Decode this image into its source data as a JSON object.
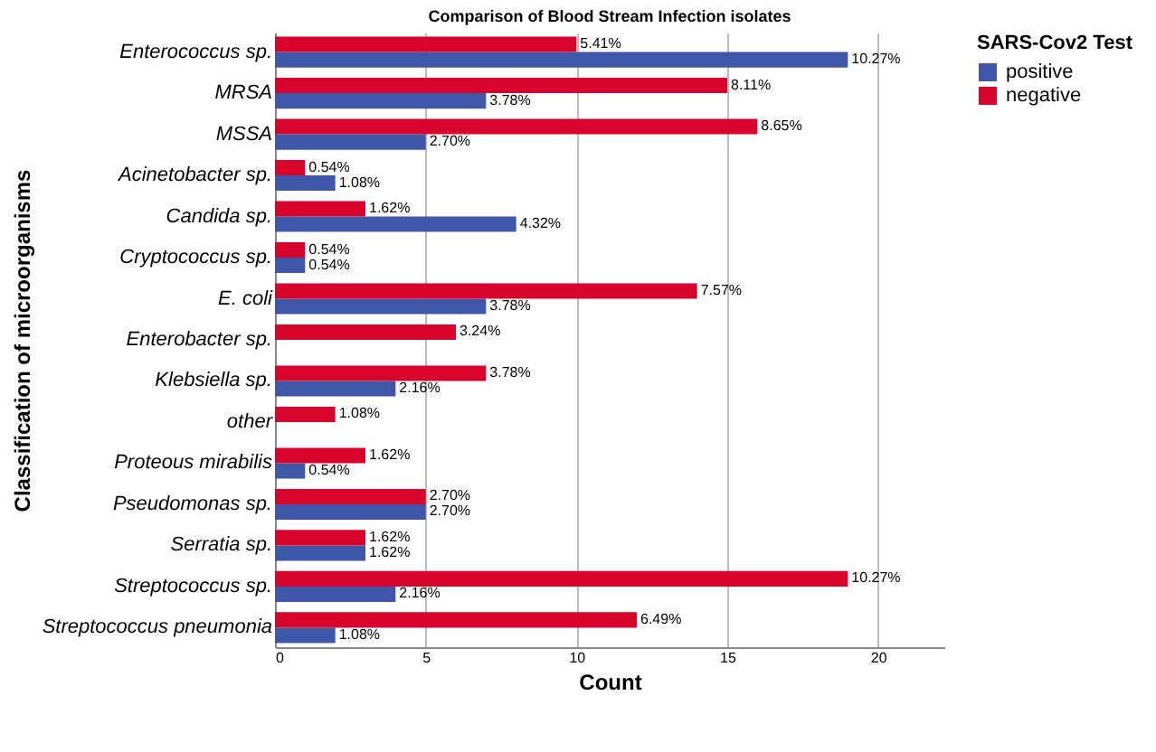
{
  "chart_data": {
    "type": "bar",
    "orientation": "horizontal",
    "title": "Comparison of Blood Stream Infection isolates",
    "xlabel": "Count",
    "ylabel": "Classification of microorganisms",
    "legend_title": "SARS-Cov2 Test",
    "legend": "right",
    "grid": "x",
    "categories": [
      "Enterococcus sp.",
      "MRSA",
      "MSSA",
      "Acinetobacter sp.",
      "Candida sp.",
      "Cryptococcus sp.",
      "E. coli",
      "Enterobacter sp.",
      "Klebsiella sp.",
      "other",
      "Proteous mirabilis",
      "Pseudomonas sp.",
      "Serratia sp.",
      "Streptococcus sp.",
      "Streptococcus pneumonia"
    ],
    "xlim": [
      0,
      22.2
    ],
    "xticks": [
      0,
      5,
      10,
      15,
      20
    ],
    "series": [
      {
        "name": "positive",
        "color": "#3f57a8",
        "values": [
          19,
          7,
          5,
          2,
          8,
          1,
          7,
          null,
          4,
          null,
          1,
          5,
          3,
          4,
          2
        ]
      },
      {
        "name": "negative",
        "color": "#d9042b",
        "values": [
          10,
          15,
          16,
          1,
          3,
          1,
          14,
          6,
          7,
          2,
          3,
          5,
          3,
          19,
          12
        ]
      }
    ],
    "annotations": [
      {
        "text": "5.41%",
        "x": 10,
        "y": "Enterococcus sp."
      },
      {
        "text": "10.27%",
        "x": 19,
        "y": "Enterococcus sp."
      },
      {
        "text": "8.11%",
        "x": 15,
        "y": "MRSA"
      },
      {
        "text": "3.78%",
        "x": 7,
        "y": "MRSA"
      },
      {
        "text": "8.65%",
        "x": 16,
        "y": "MSSA"
      },
      {
        "text": "2.70%",
        "x": 5,
        "y": "MSSA"
      },
      {
        "text": "0.54%",
        "x": 1,
        "y": "Acinetobacter sp."
      },
      {
        "text": "1.08%",
        "x": 2,
        "y": "Acinetobacter sp."
      },
      {
        "text": "1.62%",
        "x": 3,
        "y": "Candida sp."
      },
      {
        "text": "4.32%",
        "x": 8,
        "y": "Candida sp."
      },
      {
        "text": "0.54%",
        "x": 1,
        "y": "Cryptococcus sp."
      },
      {
        "text": "0.54%",
        "x": 1,
        "y": "Cryptococcus sp."
      },
      {
        "text": "7.57%",
        "x": 14,
        "y": "E. coli"
      },
      {
        "text": "3.78%",
        "x": 7,
        "y": "E. coli"
      },
      {
        "text": "3.24%",
        "x": 6,
        "y": "Enterobacter sp."
      },
      {
        "text": "3.78%",
        "x": 7,
        "y": "Klebsiella sp."
      },
      {
        "text": "2.16%",
        "x": 4,
        "y": "Klebsiella sp."
      },
      {
        "text": "1.08%",
        "x": 2,
        "y": "other"
      },
      {
        "text": "1.62%",
        "x": 3,
        "y": "Proteous mirabilis"
      },
      {
        "text": "0.54%",
        "x": 1,
        "y": "Proteous mirabilis"
      },
      {
        "text": "2.70%",
        "x": 5,
        "y": "Pseudomonas sp."
      },
      {
        "text": "2.70%",
        "x": 5,
        "y": "Pseudomonas sp."
      },
      {
        "text": "1.62%",
        "x": 3,
        "y": "Serratia sp."
      },
      {
        "text": "1.62%",
        "x": 3,
        "y": "Serratia sp."
      },
      {
        "text": "10.27%",
        "x": 19,
        "y": "Streptococcus sp."
      },
      {
        "text": "2.16%",
        "x": 4,
        "y": "Streptococcus sp."
      },
      {
        "text": "6.49%",
        "x": 12,
        "y": "Streptococcus pneumonia"
      },
      {
        "text": "1.08%",
        "x": 2,
        "y": "Streptococcus pneumonia"
      }
    ]
  }
}
